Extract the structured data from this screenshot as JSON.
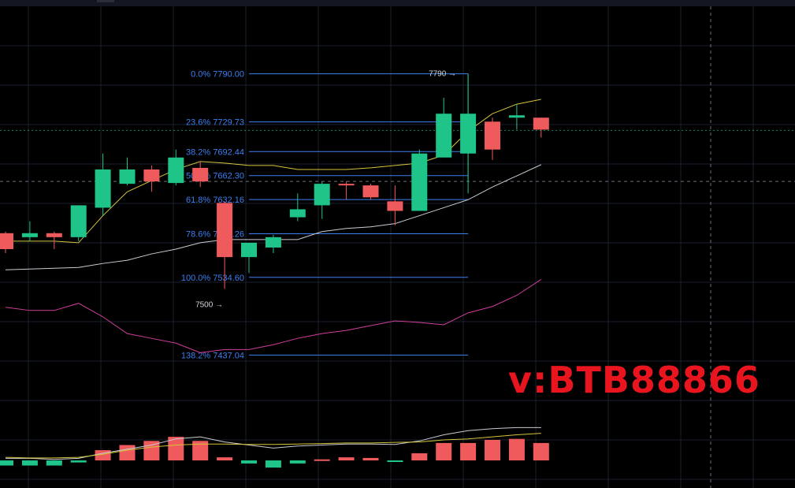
{
  "watermark": "v:BTB88866",
  "colors": {
    "up": "#1fc489",
    "down": "#ef5a5c",
    "fib": "#3d7ff0",
    "ma_fast": "#d4c43a",
    "ma_slow": "#c9ccd4",
    "band_lower": "#cf3f9b",
    "grid": "#1c2030"
  },
  "chart_data": {
    "type": "candlestick",
    "price_panel": {
      "ylim": [
        7380,
        7855
      ],
      "candles": [
        {
          "o": 7590,
          "h": 7592,
          "l": 7565,
          "c": 7570
        },
        {
          "o": 7585,
          "h": 7605,
          "l": 7580,
          "c": 7590
        },
        {
          "o": 7590,
          "h": 7592,
          "l": 7570,
          "c": 7585
        },
        {
          "o": 7585,
          "h": 7625,
          "l": 7580,
          "c": 7625
        },
        {
          "o": 7622,
          "h": 7690,
          "l": 7612,
          "c": 7670
        },
        {
          "o": 7652,
          "h": 7685,
          "l": 7650,
          "c": 7670
        },
        {
          "o": 7670,
          "h": 7675,
          "l": 7642,
          "c": 7655
        },
        {
          "o": 7653,
          "h": 7695,
          "l": 7650,
          "c": 7685
        },
        {
          "o": 7672,
          "h": 7680,
          "l": 7648,
          "c": 7655
        },
        {
          "o": 7628,
          "h": 7630,
          "l": 7520,
          "c": 7560
        },
        {
          "o": 7560,
          "h": 7578,
          "l": 7540,
          "c": 7578
        },
        {
          "o": 7572,
          "h": 7588,
          "l": 7565,
          "c": 7585
        },
        {
          "o": 7610,
          "h": 7640,
          "l": 7605,
          "c": 7620
        },
        {
          "o": 7625,
          "h": 7655,
          "l": 7608,
          "c": 7652
        },
        {
          "o": 7652,
          "h": 7655,
          "l": 7632,
          "c": 7650
        },
        {
          "o": 7650,
          "h": 7652,
          "l": 7632,
          "c": 7635
        },
        {
          "o": 7630,
          "h": 7650,
          "l": 7600,
          "c": 7618
        },
        {
          "o": 7618,
          "h": 7695,
          "l": 7618,
          "c": 7690
        },
        {
          "o": 7685,
          "h": 7760,
          "l": 7685,
          "c": 7740
        },
        {
          "o": 7690,
          "h": 7790,
          "l": 7655,
          "c": 7740
        },
        {
          "o": 7730,
          "h": 7735,
          "l": 7682,
          "c": 7695
        },
        {
          "o": 7735,
          "h": 7752,
          "l": 7720,
          "c": 7738
        },
        {
          "o": 7735,
          "h": 7735,
          "l": 7710,
          "c": 7720
        }
      ],
      "ma_fast": [
        7580,
        7580,
        7580,
        7578,
        7612,
        7642,
        7656,
        7670,
        7680,
        7678,
        7675,
        7675,
        7670,
        7670,
        7670,
        7672,
        7675,
        7678,
        7688,
        7718,
        7740,
        7752,
        7758
      ],
      "ma_slow": [
        7544,
        7545,
        7546,
        7547,
        7552,
        7556,
        7564,
        7570,
        7578,
        7582,
        7582,
        7582,
        7582,
        7592,
        7596,
        7598,
        7602,
        7612,
        7622,
        7632,
        7648,
        7662,
        7676
      ],
      "band_lower": [
        7497,
        7493,
        7493,
        7502,
        7485,
        7464,
        7458,
        7452,
        7440,
        7444,
        7444,
        7450,
        7458,
        7464,
        7468,
        7474,
        7480,
        7478,
        7475,
        7490,
        7498,
        7512,
        7532
      ],
      "fibonacci": [
        {
          "ratio": "0.0%",
          "price": "7790.00"
        },
        {
          "ratio": "23.6%",
          "price": "7729.73"
        },
        {
          "ratio": "38.2%",
          "price": "7692.44"
        },
        {
          "ratio": "50.0%",
          "price": "7662.30"
        },
        {
          "ratio": "61.8%",
          "price": "7632.16"
        },
        {
          "ratio": "78.6%",
          "price": "7589.26"
        },
        {
          "ratio": "100.0%",
          "price": "7534.60"
        },
        {
          "ratio": "138.2%",
          "price": "7437.04"
        }
      ],
      "high_mark": {
        "label": "7790",
        "price": 7790
      },
      "low_mark": {
        "label": "7500",
        "price": 7500
      },
      "current_price": 7719,
      "crosshair_price": 7655
    },
    "oscillator_panel": {
      "ylim": [
        -1,
        1.5
      ],
      "histogram": [
        -0.25,
        -0.25,
        -0.25,
        -0.1,
        0.5,
        0.75,
        0.95,
        1.15,
        0.95,
        0.15,
        -0.15,
        -0.35,
        -0.15,
        0.05,
        0.15,
        0.12,
        -0.05,
        0.35,
        0.85,
        0.85,
        1.0,
        1.05,
        0.85
      ],
      "signal": [
        0.1,
        0.1,
        0.05,
        0.1,
        0.35,
        0.55,
        0.75,
        1.05,
        1.15,
        0.9,
        0.75,
        0.6,
        0.7,
        0.75,
        0.8,
        0.8,
        0.78,
        0.95,
        1.25,
        1.45,
        1.55,
        1.6,
        1.6
      ],
      "line": [
        0.15,
        0.12,
        0.12,
        0.15,
        0.3,
        0.5,
        0.65,
        0.75,
        0.8,
        0.8,
        0.78,
        0.78,
        0.8,
        0.82,
        0.85,
        0.85,
        0.88,
        0.9,
        1.0,
        1.05,
        1.15,
        1.25,
        1.32
      ]
    }
  }
}
